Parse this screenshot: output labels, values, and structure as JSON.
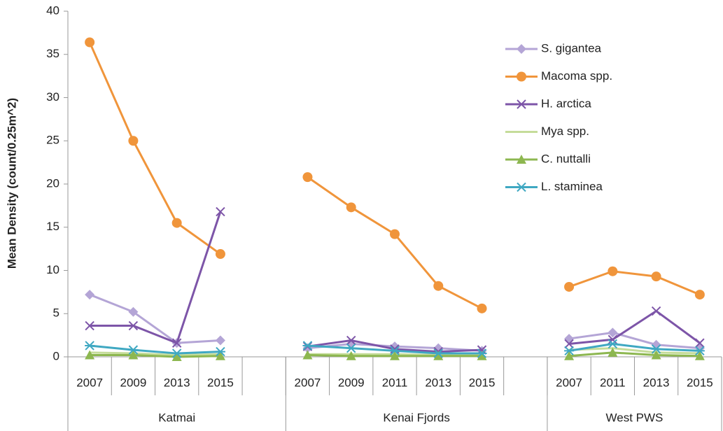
{
  "chart_data": {
    "type": "line",
    "y_label": "Mean Density (count/0.25m^2)",
    "categories": [
      "2007",
      "2009",
      "2013",
      "2015",
      null,
      "2007",
      "2009",
      "2011",
      "2013",
      "2015",
      null,
      "2007",
      "2011",
      "2013",
      "2015"
    ],
    "groups": [
      {
        "name": "Katmai",
        "from": 0,
        "to": 4
      },
      {
        "name": "Kenai Fjords",
        "from": 5,
        "to": 10
      },
      {
        "name": "West PWS",
        "from": 11,
        "to": 14
      }
    ],
    "ylim": [
      0,
      40
    ],
    "yticks": [
      0,
      5,
      10,
      15,
      20,
      25,
      30,
      35,
      40
    ],
    "grid": false,
    "legend": "top-right",
    "series": [
      {
        "name": "S. gigantea",
        "color": "#b4a5d6",
        "marker": "diamond",
        "values": [
          7.2,
          5.2,
          1.6,
          1.9,
          null,
          1.0,
          1.5,
          1.2,
          1.0,
          0.7,
          null,
          2.1,
          2.8,
          1.4,
          1.0
        ]
      },
      {
        "name": "Macoma spp.",
        "color": "#f0953b",
        "marker": "circle",
        "values": [
          36.4,
          25.0,
          15.5,
          11.9,
          null,
          20.8,
          17.3,
          14.2,
          8.2,
          5.6,
          null,
          8.1,
          9.9,
          9.3,
          7.2
        ]
      },
      {
        "name": "H. arctica",
        "color": "#7d55a8",
        "marker": "x",
        "values": [
          3.6,
          3.6,
          1.6,
          16.8,
          null,
          1.2,
          1.9,
          0.9,
          0.6,
          0.8,
          null,
          1.5,
          2.0,
          5.3,
          1.6
        ]
      },
      {
        "name": "Mya spp.",
        "color": "#c5dc9a",
        "marker": "none",
        "values": [
          0.5,
          0.4,
          0.2,
          0.3,
          null,
          0.3,
          0.3,
          0.3,
          0.2,
          0.2,
          null,
          0.8,
          1.0,
          0.5,
          0.4
        ]
      },
      {
        "name": "C. nuttalli",
        "color": "#8db750",
        "marker": "triangle",
        "values": [
          0.2,
          0.2,
          0.0,
          0.1,
          null,
          0.2,
          0.1,
          0.1,
          0.1,
          0.1,
          null,
          0.1,
          0.5,
          0.2,
          0.1
        ]
      },
      {
        "name": "L. staminea",
        "color": "#3fa8c2",
        "marker": "asterisk",
        "values": [
          1.3,
          0.8,
          0.4,
          0.6,
          null,
          1.3,
          1.0,
          0.7,
          0.4,
          0.4,
          null,
          0.7,
          1.5,
          0.9,
          0.7
        ]
      }
    ]
  }
}
